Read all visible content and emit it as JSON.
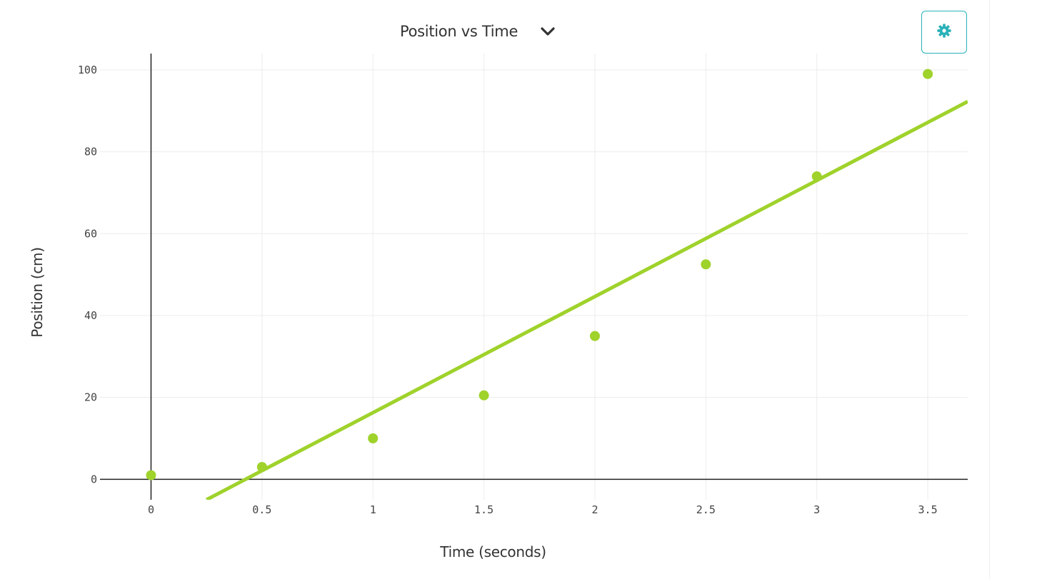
{
  "header": {
    "graph_title": "Position vs Time",
    "dropdown_icon": "chevron-down-icon"
  },
  "settings": {
    "icon": "gear-icon",
    "accent_color": "#2ab1b8"
  },
  "chart_data": {
    "type": "scatter",
    "xlabel": "Time (seconds)",
    "ylabel": "Position (cm)",
    "xlim": [
      -0.23,
      3.68
    ],
    "ylim": [
      -5,
      104
    ],
    "x_ticks": [
      0,
      0.5,
      1,
      1.5,
      2,
      2.5,
      3,
      3.5
    ],
    "x_tick_labels": [
      "0",
      "0.5",
      "1",
      "1.5",
      "2",
      "2.5",
      "3",
      "3.5"
    ],
    "y_ticks": [
      0,
      20,
      40,
      60,
      80,
      100
    ],
    "y_tick_labels": [
      "0",
      "20",
      "40",
      "60",
      "80",
      "100"
    ],
    "grid": true,
    "series": [
      {
        "mode": "markers",
        "color": "#9fd22b",
        "x": [
          0,
          0.5,
          1,
          1.5,
          2,
          2.5,
          3,
          3.5
        ],
        "y": [
          1,
          3,
          10,
          20.5,
          35,
          52.5,
          74,
          99
        ]
      }
    ],
    "fit_line": {
      "color": "#9fd22b",
      "slope": 28.36,
      "intercept": -12.08,
      "x_range": [
        0.25,
        3.68
      ]
    }
  }
}
